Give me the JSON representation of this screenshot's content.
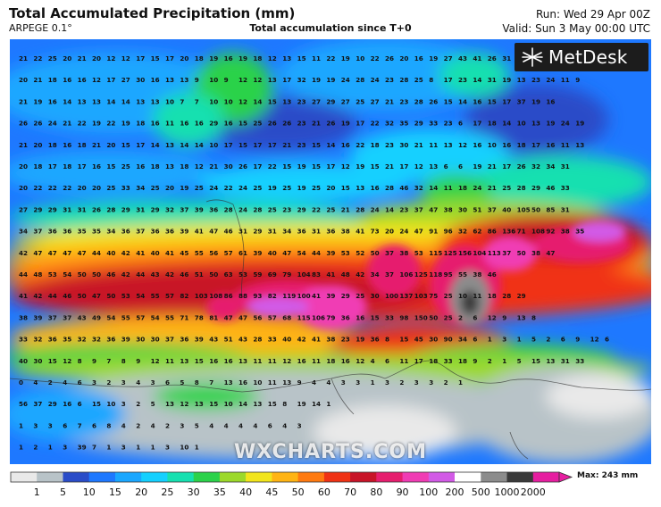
{
  "header": {
    "title": "Total Accumulated Precipitation (mm)",
    "model": "ARPEGE 0.1°",
    "subtitle": "Total accumulation since T+0",
    "run": "Run: Wed 29 Apr 00Z",
    "valid": "Valid: Sun 3 May 00:00 UTC"
  },
  "branding": {
    "logo_text": "MetDesk",
    "watermark": "WXCHARTS.COM"
  },
  "legend": {
    "max_label": "Max: 243 mm",
    "ticks": [
      "1",
      "5",
      "10",
      "15",
      "20",
      "25",
      "30",
      "35",
      "40",
      "45",
      "50",
      "60",
      "70",
      "80",
      "90",
      "100",
      "200",
      "500",
      "1000",
      "2000"
    ],
    "colors": [
      "#e9e9e9",
      "#b8c3c8",
      "#2a4cc8",
      "#1e78ff",
      "#1aa7ff",
      "#14d0ff",
      "#16e0b0",
      "#2bd24a",
      "#9cd92a",
      "#f2e51c",
      "#ffb414",
      "#ff7a10",
      "#f03214",
      "#c81428",
      "#e61e6e",
      "#f03cb4",
      "#d25ae6",
      "#ffffff",
      "#8c8c8c",
      "#3a3a3a",
      "#e61ea0"
    ]
  },
  "map": {
    "rows": [
      "21 22 25 20 21 20 12 12 17 15 17 20 18 19 16 19 18 12 13 15 11 22 19 10 22 26 20 16 19 27 43 41 26 31",
      "20 21 18 16 16 12 17 27 30 16 13 13 9 10 9 12 12 13 17 32 19 19 24 28 24 23 28 25 8 17 23 14 31 19 13 23 24 11 9",
      "21 19 16 14 13 13 14 14 13 13 10 7 7 10 10 12 14 15 13 23 27 29 27 25 27 21 23 28 26 15 14 16 15 17 37 19 16",
      "26 26 24 21 22 19 22 19 18 16 11 16 16 29 16 15 25 26 26 23 21 26 19 17 22 32 35 29 33 23 6 17 18 14 10 13 19 24 19",
      "21 20 18 16 18 21 20 15 17 14 13 14 14 10 17 15 17 17 21 23 15 14 16 22 18 23 30 21 11 13 12 16 10 16 18 17 16 11 13",
      "20 18 17 18 17 16 15 25 16 18 13 18 12 21 30 26 17 22 15 19 15 17 12 19 15 21 17 12 13 6 6 19 21 17 26 32 34 31",
      "20 22 22 22 20 20 25 33 34 25 20 19 25 24 22 24 25 19 25 19 25 20 15 13 16 28 46 32 14 11 18 24 21 25 28 29 46 33",
      "27 29 29 31 31 26 28 29 31 29 32 37 39 36 28 24 28 25 23 29 22 25 21 28 24 14 23 37 47 38 30 51 37 40 105 50 85 31",
      "34 37 36 36 35 35 34 36 37 36 36 39 41 47 46 31 29 31 34 36 31 36 38 41 73 20 24 47 91 96 32 62 86 136 71 108 92 38 35",
      "42 47 47 47 47 44 40 42 41 40 41 45 55 56 57 61 39 40 47 54 44 39 53 52 50 37 38 53 115 125 156 104 113 37 50 38 47",
      "44 48 53 54 50 50 46 42 44 43 42 46 51 50 63 53 59 69 79 104 83 41 48 42 34 37 106 125 118 95 55 38 46",
      "41 42 44 46 50 47 50 53 54 55 57 82 103 108 86 88 93 82 119 100 41 39 29 25 30 100 137 103 75 25 10 11 18 28 29",
      "38 39 37 37 43 49 54 55 57 54 55 71 78 81 47 47 56 57 68 115 106 79 36 16 15 33 98 150 50 25 2 6 12 9 13 8",
      "33 32 36 35 32 32 36 39 30 30 37 36 39 43 51 43 28 33 40 42 41 38 23 19 36 8 15 45 30 90 34 6 1 3 1 5 2 6 9 12 6",
      "40 30 15 12 8 9 7 8 9 12 11 13 15 16 16 13 11 11 12 16 11 18 16 12 4 6 11 17 18 33 18 9 2 1 5 15 13 31 33",
      "0 4 2 4 6 3 2 3 4 3 6 5 8 7 13 16 10 11 13 9 4 4 3 3 1 3 2 3 3 2 1",
      "56 37 29 16 6 15 10 3 2 5 13 12 13 15 10 14 13 15 8 19 14 1",
      "1 3 3 6 7 6 8 4 2 4 2 3 5 4 4 4 4 6 4 3",
      "1 2 1 3 39 7 1 3 1 1 3 10 1"
    ]
  }
}
